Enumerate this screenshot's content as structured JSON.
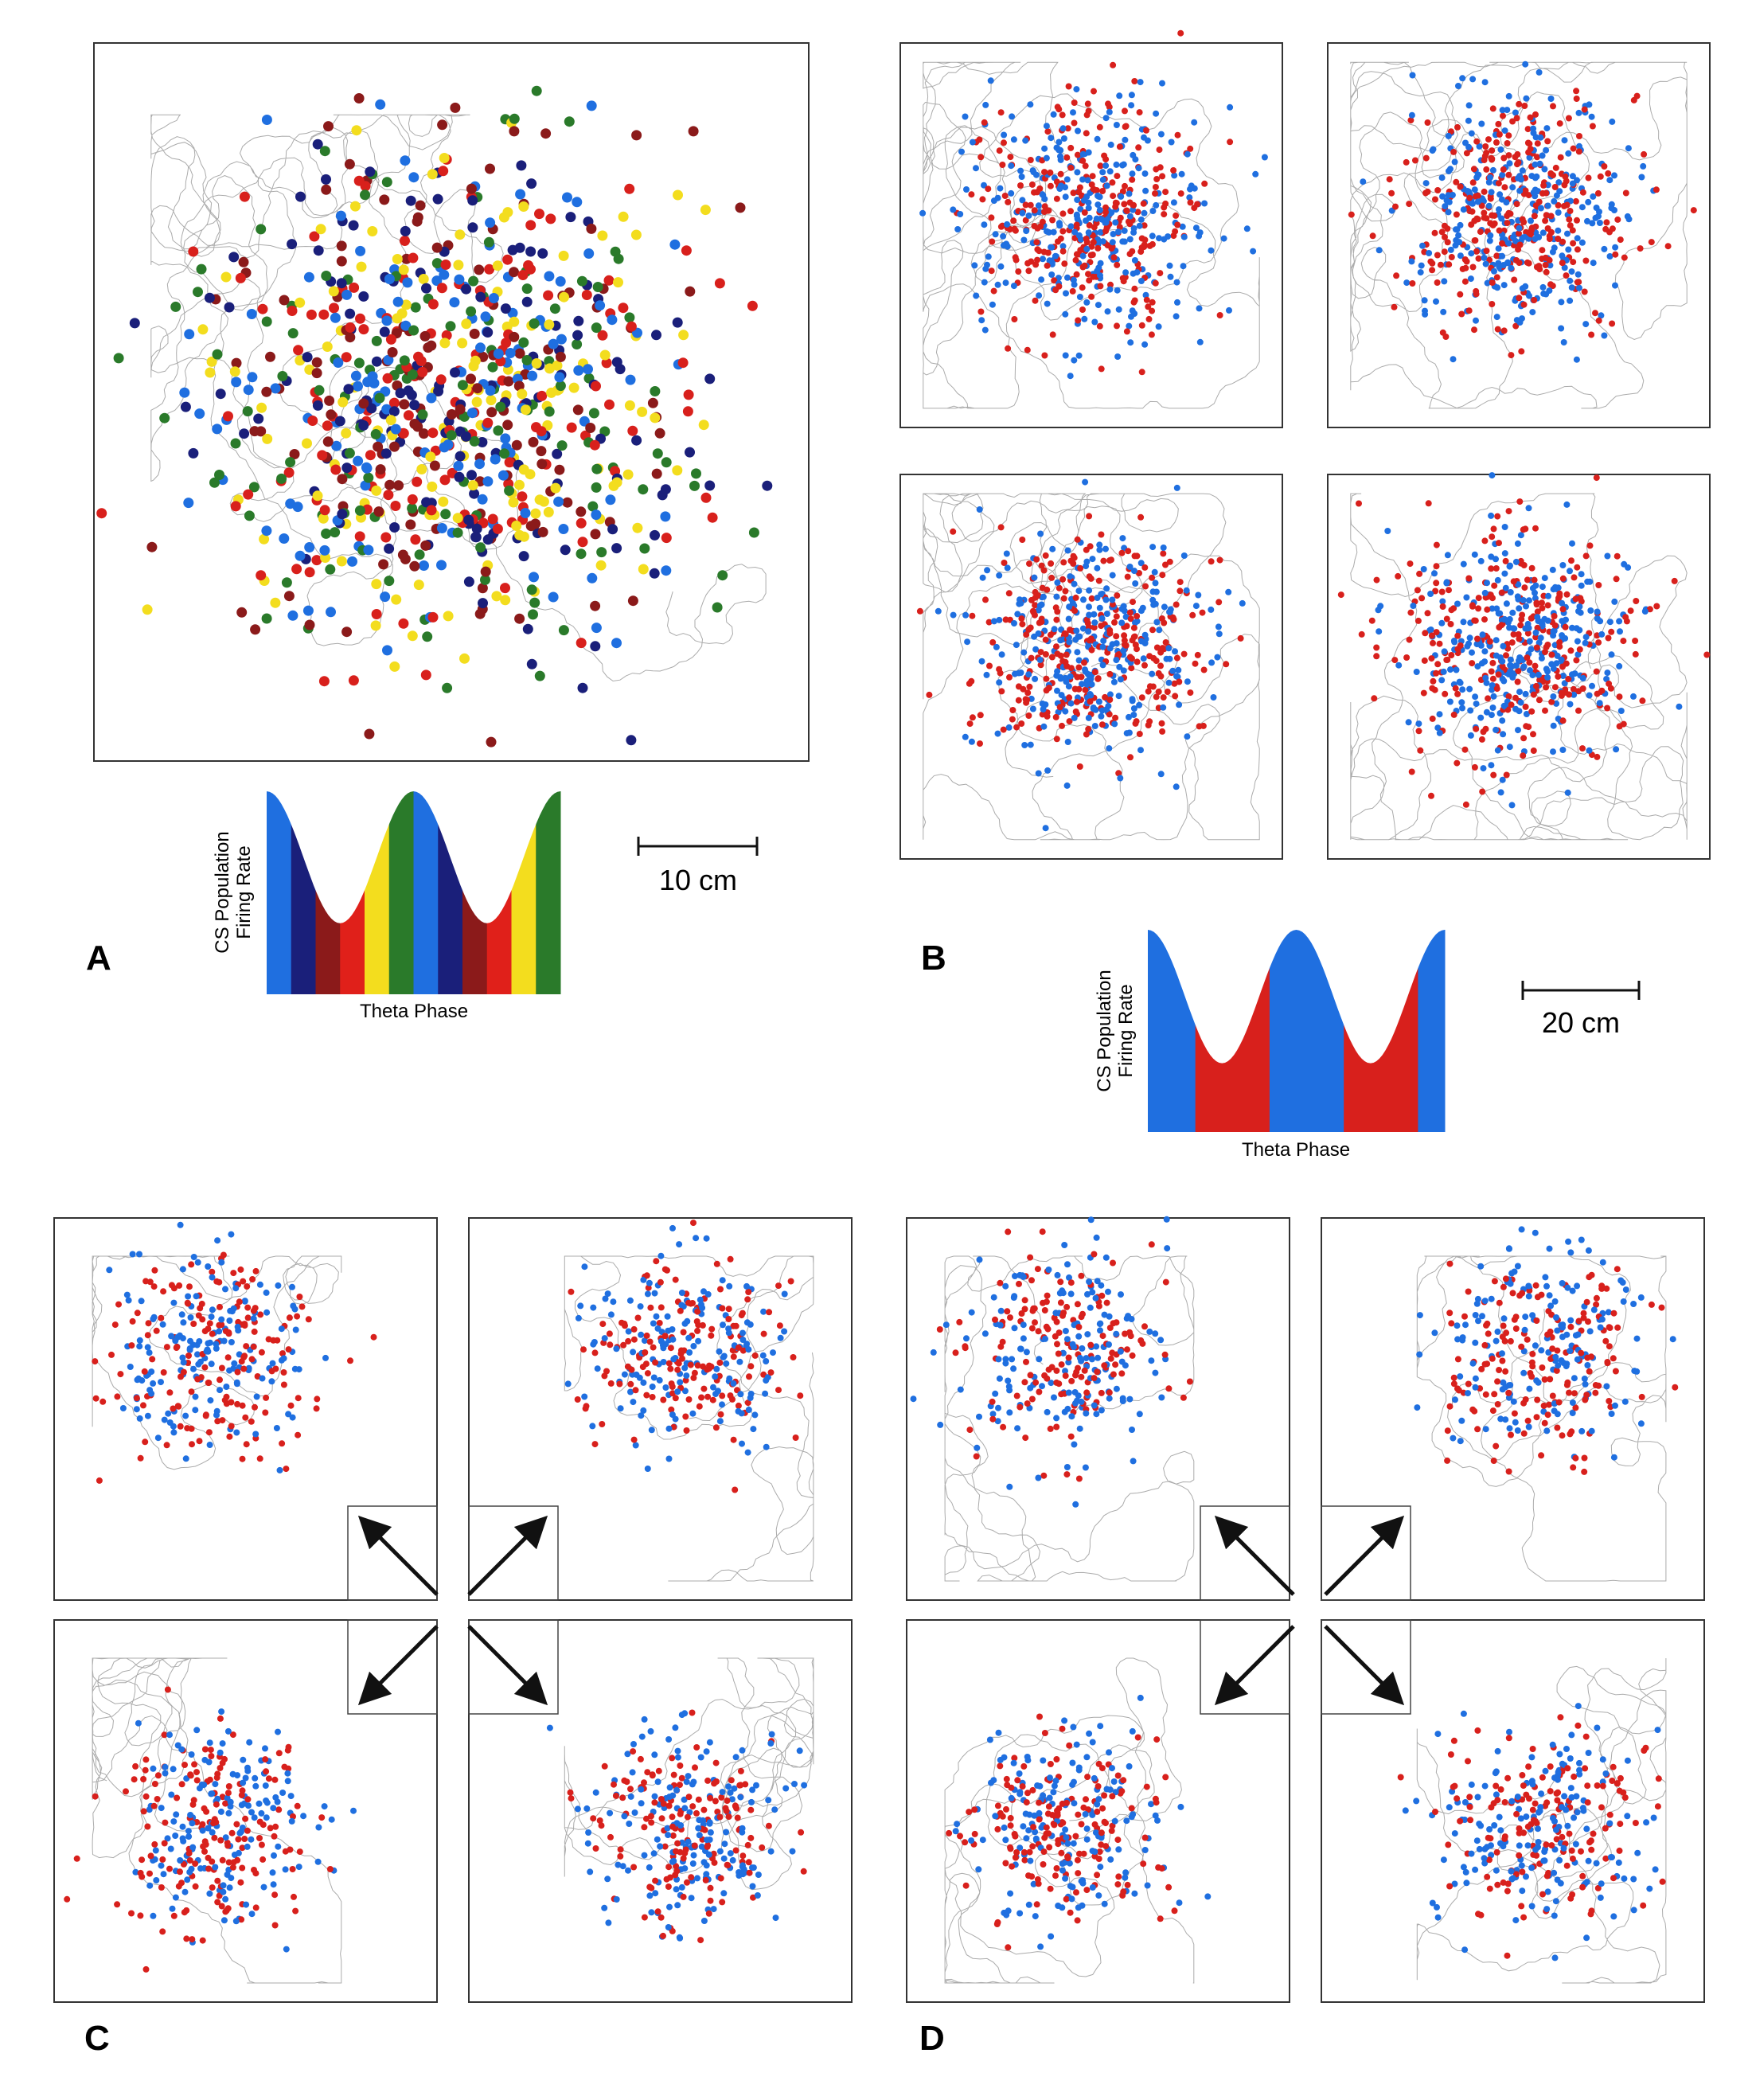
{
  "panels": {
    "a": {
      "label": "A",
      "y_label_line1": "CS Population",
      "y_label_line2": "Firing Rate",
      "x_label": "Theta Phase",
      "scale_bar": "10 cm"
    },
    "b": {
      "label": "B",
      "y_label_line1": "CS Population",
      "y_label_line2": "Firing Rate",
      "x_label": "Theta Phase",
      "scale_bar": "20 cm"
    },
    "c": {
      "label": "C"
    },
    "d": {
      "label": "D"
    }
  }
}
